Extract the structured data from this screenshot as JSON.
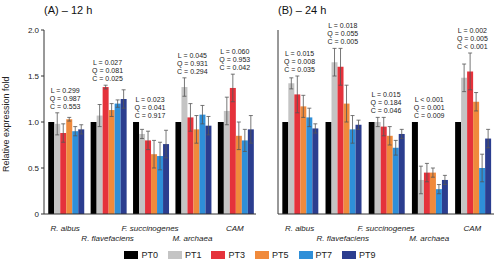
{
  "chart_data": [
    {
      "type": "bar",
      "title": "(A) – 12 h",
      "y_label": "Relative expression fold",
      "categories": [
        "R. albus",
        "R. flavefaciens",
        "F. succinogenes",
        "M. archaea",
        "CAM"
      ],
      "series": [
        {
          "name": "PT0",
          "color": "#000000",
          "values": [
            1.0,
            1.0,
            1.0,
            1.0,
            1.0
          ],
          "errors": [
            0,
            0,
            0,
            0,
            0
          ]
        },
        {
          "name": "PT1",
          "color": "#c4c4c4",
          "values": [
            0.98,
            1.07,
            0.87,
            1.38,
            1.12
          ],
          "errors": [
            0.12,
            0.12,
            0.05,
            0.1,
            0.15
          ]
        },
        {
          "name": "PT3",
          "color": "#e5323b",
          "values": [
            0.88,
            1.38,
            0.8,
            1.05,
            1.37
          ],
          "errors": [
            0.1,
            0.02,
            0.1,
            0.15,
            0.15
          ]
        },
        {
          "name": "PT5",
          "color": "#f08a3c",
          "values": [
            1.03,
            1.13,
            0.65,
            0.92,
            0.85
          ],
          "errors": [
            0.02,
            0.07,
            0.15,
            0.15,
            0.15
          ]
        },
        {
          "name": "PT7",
          "color": "#2f8fd8",
          "values": [
            0.9,
            1.2,
            0.63,
            1.08,
            0.8
          ],
          "errors": [
            0.05,
            0.04,
            0.15,
            0.1,
            0.12
          ]
        },
        {
          "name": "PT9",
          "color": "#2b3d8f",
          "values": [
            0.92,
            1.25,
            0.76,
            0.96,
            0.92
          ],
          "errors": [
            0.05,
            0.1,
            0.15,
            0.1,
            0.15
          ]
        }
      ],
      "ylim": [
        0,
        2
      ],
      "yticks": [
        0,
        0.5,
        {
          "value": 1,
          "label": "1.0"
        },
        1.5,
        {
          "value": 2,
          "label": "2.0"
        }
      ],
      "annotations": [
        [
          "L = 0.299",
          "Q = 0.987",
          "C = 0.553"
        ],
        [
          "L = 0.027",
          "Q = 0.081",
          "C = 0.025"
        ],
        [
          "L = 0.023",
          "Q = 0.041",
          "C = 0.917"
        ],
        [
          "L = 0.045",
          "Q = 0.931",
          "C = 0.294"
        ],
        [
          "L = 0.060",
          "Q = 0.953",
          "C = 0.042"
        ]
      ],
      "legend": "bottom"
    },
    {
      "type": "bar",
      "title": "(B) – 24 h",
      "categories": [
        "R. albus",
        "R. flavefaciens",
        "F. succinogenes",
        "M. archaea",
        "CAM"
      ],
      "series": [
        {
          "name": "PT0",
          "color": "#000000",
          "values": [
            1.0,
            1.0,
            1.0,
            1.0,
            1.0
          ],
          "errors": [
            0,
            0,
            0,
            0,
            0
          ]
        },
        {
          "name": "PT1",
          "color": "#c4c4c4",
          "values": [
            1.42,
            1.65,
            1.0,
            0.37,
            1.48
          ],
          "errors": [
            0.06,
            0.15,
            0.05,
            0.15,
            0.15
          ]
        },
        {
          "name": "PT3",
          "color": "#e5323b",
          "values": [
            1.3,
            1.6,
            0.95,
            0.45,
            1.55
          ],
          "errors": [
            0.2,
            0.2,
            0.1,
            0.1,
            0.2
          ]
        },
        {
          "name": "PT5",
          "color": "#f08a3c",
          "values": [
            1.17,
            1.2,
            0.85,
            0.45,
            1.22
          ],
          "errors": [
            0.12,
            0.2,
            0.1,
            0.05,
            0.1
          ]
        },
        {
          "name": "PT7",
          "color": "#2f8fd8",
          "values": [
            1.05,
            0.92,
            0.72,
            0.27,
            0.5
          ],
          "errors": [
            0.1,
            0.15,
            0.08,
            0.05,
            0.15
          ]
        },
        {
          "name": "PT9",
          "color": "#2b3d8f",
          "values": [
            0.93,
            0.97,
            0.87,
            0.37,
            0.82
          ],
          "errors": [
            0.05,
            0.05,
            0.05,
            0.05,
            0.1
          ]
        }
      ],
      "ylim": [
        0,
        2
      ],
      "yticks": [
        0,
        0.5,
        {
          "value": 1,
          "label": "1.0"
        },
        1.5,
        {
          "value": 2,
          "label": "2.0"
        }
      ],
      "annotations": [
        [
          "L = 0.015",
          "Q = 0.008",
          "C = 0.035"
        ],
        [
          "L = 0.018",
          "Q = 0.055",
          "C = 0.005"
        ],
        [
          "L = 0.015",
          "Q = 0.184",
          "C = 0.046"
        ],
        [
          "L < 0.001",
          "Q = 0.001",
          "C = 0.009"
        ],
        [
          "L = 0.002",
          "Q = 0.005",
          "C < 0.001"
        ]
      ],
      "tick_labels": "x"
    }
  ]
}
